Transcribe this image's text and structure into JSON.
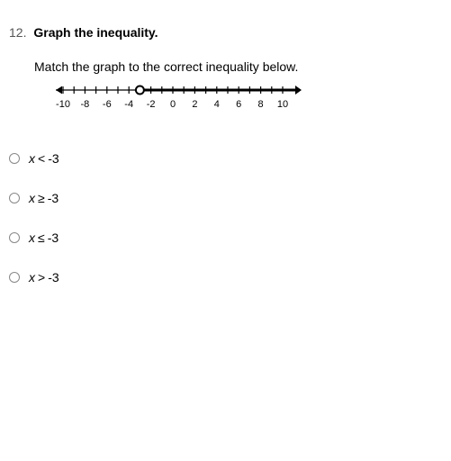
{
  "question": {
    "number": "12.",
    "title": "Graph the inequality.",
    "instruction": "Match the graph to the correct inequality below."
  },
  "numberLine": {
    "min": -10,
    "max": 10,
    "tickStep": 1,
    "labelStep": 2,
    "labels": [
      "-10",
      "-8",
      "-6",
      "-4",
      "-2",
      "0",
      "2",
      "4",
      "6",
      "8",
      "10"
    ],
    "openCircleAt": -3,
    "rayDirection": "right",
    "rayEnd": 11,
    "pxStart": 20,
    "pxEnd": 264,
    "lineY": 12,
    "lineColor": "#000000",
    "tickHeight": 8,
    "thickLineWidth": 3,
    "thinLineWidth": 1.2,
    "circleRadius": 4.5,
    "circleStroke": 2,
    "arrowSize": 7
  },
  "choices": [
    {
      "var": "x",
      "op": "<",
      "val": "-3"
    },
    {
      "var": "x",
      "op": "≥",
      "val": "-3"
    },
    {
      "var": "x",
      "op": "≤",
      "val": "-3"
    },
    {
      "var": "x",
      "op": ">",
      "val": "-3"
    }
  ]
}
